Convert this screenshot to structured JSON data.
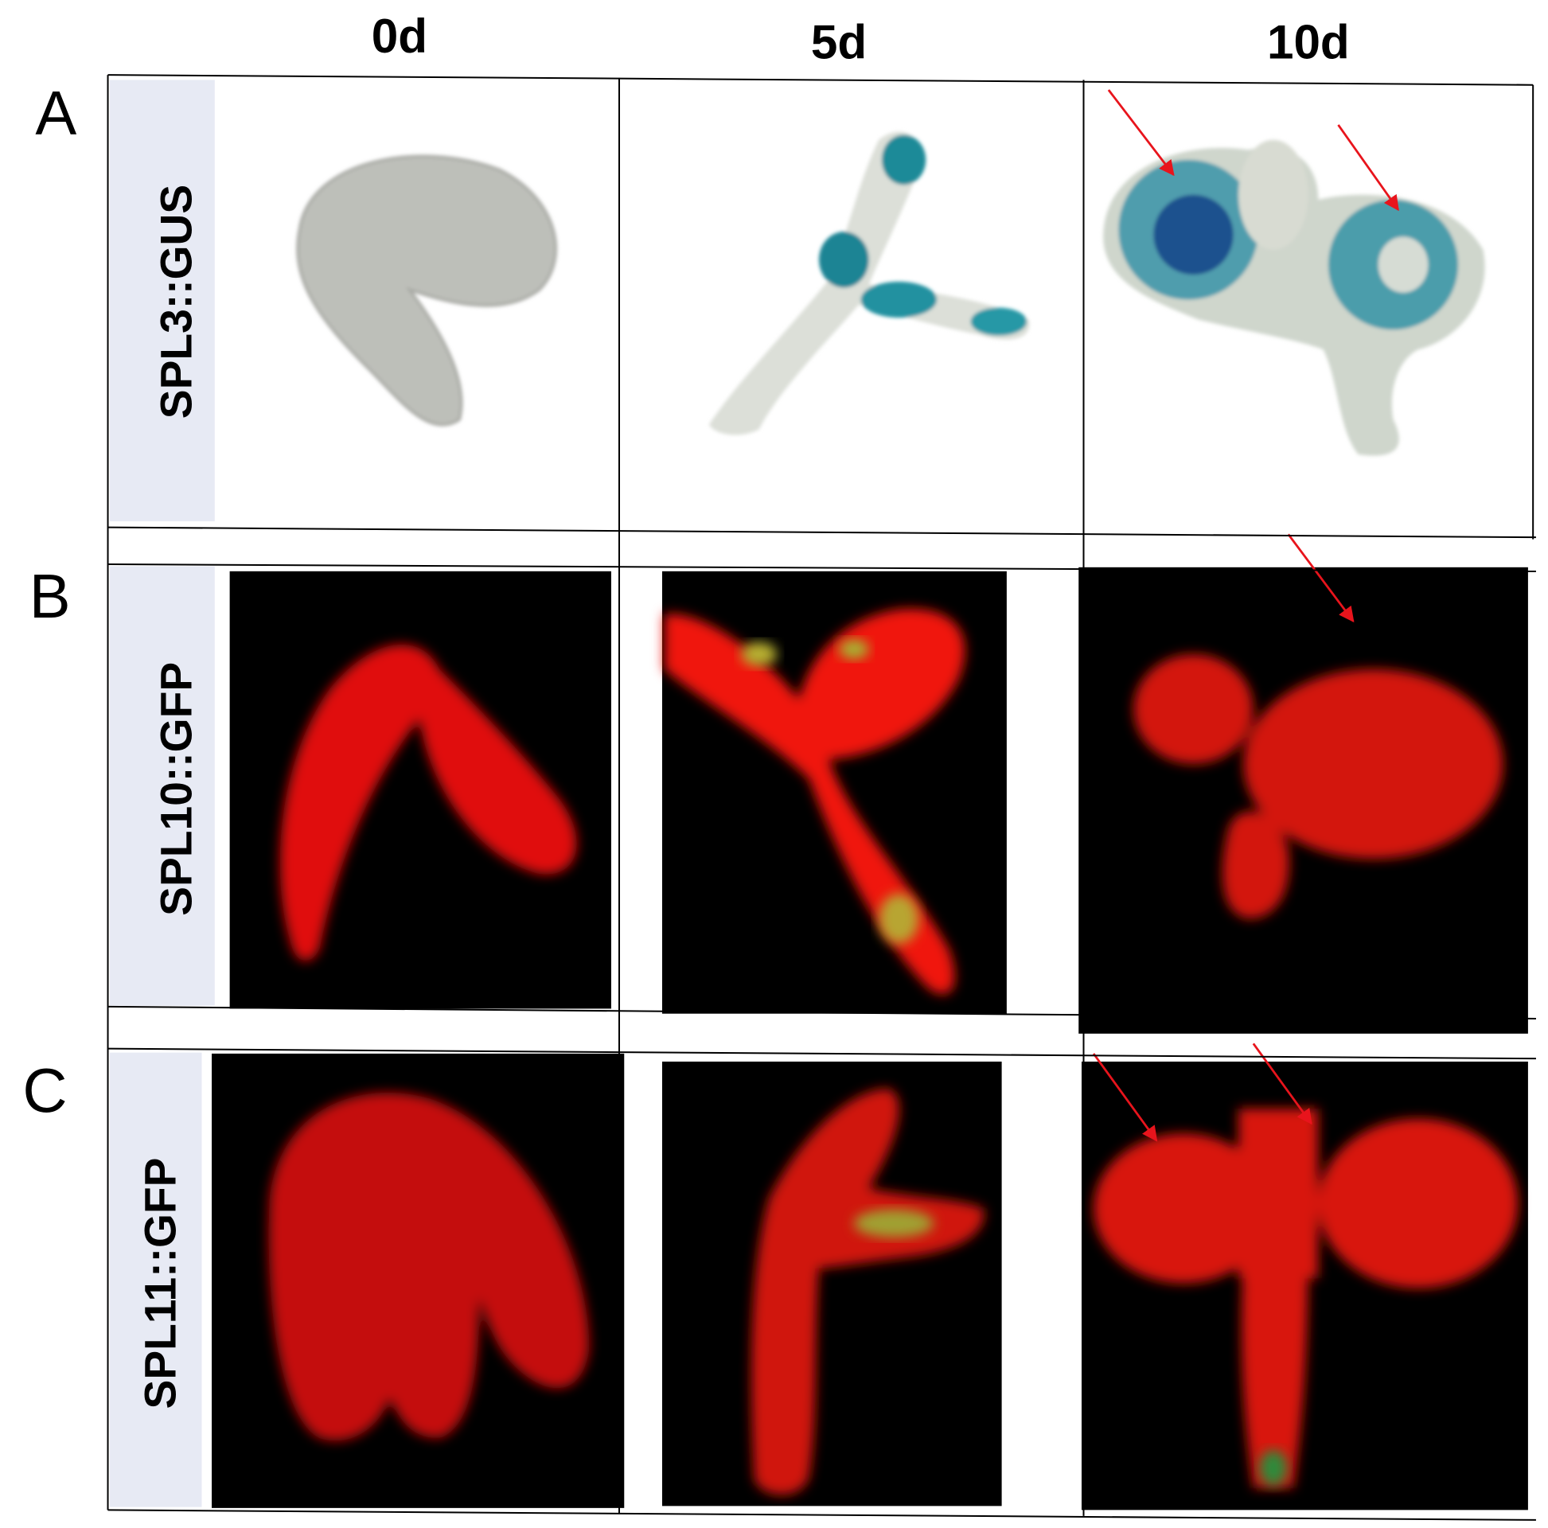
{
  "columns": [
    "0d",
    "5d",
    "10d"
  ],
  "rows": [
    {
      "letter": "A",
      "label": "SPL3::GUS"
    },
    {
      "letter": "B",
      "label": "SPL10::GFP"
    },
    {
      "letter": "C",
      "label": "SPL11::GFP"
    }
  ]
}
